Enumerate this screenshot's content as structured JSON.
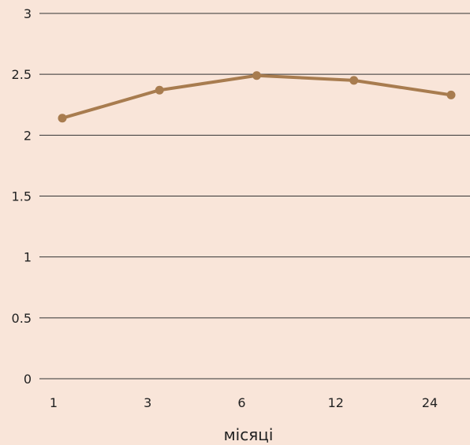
{
  "chart_data": {
    "type": "line",
    "categories": [
      "1",
      "3",
      "6",
      "12",
      "24"
    ],
    "series": [
      {
        "values": [
          2.14,
          2.37,
          2.49,
          2.45,
          2.33
        ],
        "color": "#a87c4f"
      }
    ],
    "yticks": [
      "0",
      "0.5",
      "1",
      "1.5",
      "2",
      "2.5",
      "3"
    ],
    "ylim": [
      0,
      3
    ],
    "xlabel": "місяці",
    "ylabel": "",
    "title": "",
    "grid": true,
    "legend": "none",
    "background": "#f9e5d9"
  }
}
